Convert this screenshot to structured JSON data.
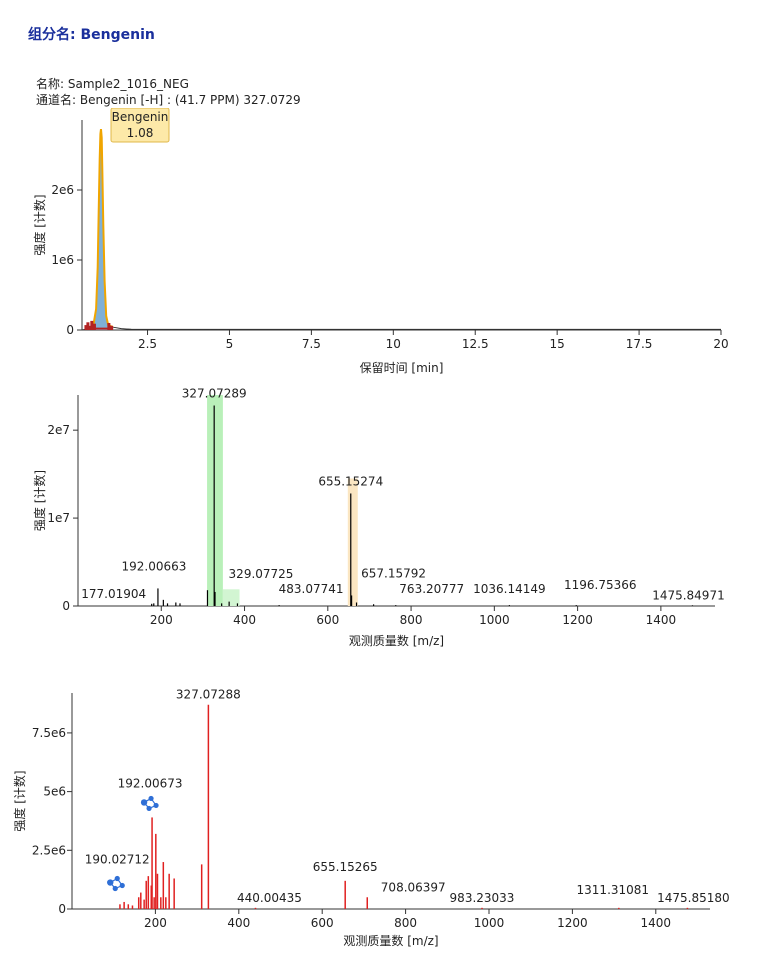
{
  "header": {
    "title": "组分名:  Bengenin",
    "sample": "名称: Sample2_1016_NEG",
    "channel": "通道名: Bengenin [-H] : (41.7 PPM) 327.0729"
  },
  "colors": {
    "title": "#1a2f9c",
    "chrom_fill": "#7fb0d6",
    "chrom_outline": "#f0a500",
    "chrom_noise": "#b22222",
    "ms1_line": "#000000",
    "ms1_green_band": "#b9f0b9",
    "ms1_orange_band": "#fbe6c2",
    "ms2_line": "#e02020",
    "structure_icon": "#2f6fd6",
    "callout_fill": "#fde9a8",
    "callout_border": "#e0b84a"
  },
  "chart_data": [
    {
      "type": "line",
      "xlabel": "保留时间 [min]",
      "ylabel": "强度 [计数]",
      "xlim": [
        0.5,
        20
      ],
      "ylim": [
        0,
        3000000
      ],
      "xticks": [
        2.5,
        5,
        7.5,
        10,
        12.5,
        15,
        17.5,
        20
      ],
      "xtick_labels": [
        "2.5",
        "5",
        "7.5",
        "10",
        "12.5",
        "15",
        "17.5",
        "20"
      ],
      "yticks": [
        0,
        1000000,
        2000000
      ],
      "ytick_labels": [
        "0",
        "1e6",
        "2e6"
      ],
      "x": [
        0.5,
        0.7,
        0.85,
        0.93,
        0.98,
        1.01,
        1.04,
        1.06,
        1.08,
        1.1,
        1.12,
        1.15,
        1.19,
        1.24,
        1.3,
        1.45,
        1.7,
        2.0,
        5,
        10,
        15,
        20
      ],
      "y": [
        0,
        20000,
        80000,
        300000,
        900000,
        1700000,
        2450000,
        2800000,
        2870000,
        2750000,
        2300000,
        1500000,
        700000,
        200000,
        70000,
        40000,
        20000,
        10000,
        8000,
        8000,
        8000,
        8000
      ],
      "peak_callout": {
        "name": "Bengenin",
        "rt": "1.08",
        "x": 1.08
      },
      "noise_x": [
        0.62,
        0.68,
        0.74,
        0.8,
        0.88,
        1.32,
        1.4
      ],
      "noise_y": [
        70000,
        110000,
        60000,
        130000,
        90000,
        100000,
        60000
      ]
    },
    {
      "type": "bar",
      "xlabel": "观测质量数 [m/z]",
      "ylabel": "强度 [计数]",
      "xlim": [
        0,
        1530
      ],
      "ylim": [
        0,
        24000000
      ],
      "xticks": [
        200,
        400,
        600,
        800,
        1000,
        1200,
        1400
      ],
      "xtick_labels": [
        "200",
        "400",
        "600",
        "800",
        "1000",
        "1200",
        "1400"
      ],
      "yticks": [
        0,
        10000000,
        20000000
      ],
      "ytick_labels": [
        "0",
        "1e7",
        "2e7"
      ],
      "bands": [
        {
          "x0": 310,
          "x1": 348,
          "color": "#b9f0b9",
          "ymax": 24000000
        },
        {
          "x0": 348,
          "x1": 388,
          "color": "#d2f5d2",
          "ymax": 1900000
        },
        {
          "x0": 648,
          "x1": 672,
          "color": "#fbe6c2",
          "ymax": 14500000
        }
      ],
      "peaks": [
        {
          "mz": 177.01904,
          "intensity": 250000
        },
        {
          "mz": 182.0,
          "intensity": 300000
        },
        {
          "mz": 192.00663,
          "intensity": 2000000
        },
        {
          "mz": 205.0,
          "intensity": 700000
        },
        {
          "mz": 215.0,
          "intensity": 300000
        },
        {
          "mz": 235.0,
          "intensity": 400000
        },
        {
          "mz": 245.0,
          "intensity": 300000
        },
        {
          "mz": 311.0,
          "intensity": 1800000
        },
        {
          "mz": 327.07289,
          "intensity": 22800000
        },
        {
          "mz": 329.07725,
          "intensity": 1600000
        },
        {
          "mz": 345.0,
          "intensity": 300000
        },
        {
          "mz": 363.0,
          "intensity": 500000
        },
        {
          "mz": 383.0,
          "intensity": 300000
        },
        {
          "mz": 483.07741,
          "intensity": 100000
        },
        {
          "mz": 655.15274,
          "intensity": 12800000
        },
        {
          "mz": 657.15792,
          "intensity": 1200000
        },
        {
          "mz": 669.0,
          "intensity": 400000
        },
        {
          "mz": 710.0,
          "intensity": 200000
        },
        {
          "mz": 763.20777,
          "intensity": 100000
        },
        {
          "mz": 1036.14149,
          "intensity": 100000
        },
        {
          "mz": 1196.75366,
          "intensity": 100000
        },
        {
          "mz": 1475.84971,
          "intensity": 80000
        }
      ],
      "labels": [
        {
          "text": "177.01904",
          "mz": 177.01904,
          "intensity": 250000
        },
        {
          "text": "192.00663",
          "mz": 192.00663,
          "intensity": 2000000
        },
        {
          "text": "327.07289",
          "mz": 327.07289,
          "intensity": 22800000
        },
        {
          "text": "329.07725",
          "mz": 329.07725,
          "intensity": 1600000
        },
        {
          "text": "483.07741",
          "mz": 483.07741,
          "intensity": 100000
        },
        {
          "text": "655.15274",
          "mz": 655.15274,
          "intensity": 12800000
        },
        {
          "text": "657.15792",
          "mz": 657.15792,
          "intensity": 1200000
        },
        {
          "text": "763.20777",
          "mz": 763.20777,
          "intensity": 100000
        },
        {
          "text": "1036.14149",
          "mz": 1036.14149,
          "intensity": 100000
        },
        {
          "text": "1196.75366",
          "mz": 1196.75366,
          "intensity": 100000
        },
        {
          "text": "1475.84971",
          "mz": 1475.84971,
          "intensity": 80000
        }
      ]
    },
    {
      "type": "bar",
      "xlabel": "观测质量数 [m/z]",
      "ylabel": "强度 [计数]",
      "xlim": [
        0,
        1530
      ],
      "ylim": [
        0,
        9200000
      ],
      "xticks": [
        200,
        400,
        600,
        800,
        1000,
        1200,
        1400
      ],
      "xtick_labels": [
        "200",
        "400",
        "600",
        "800",
        "1000",
        "1200",
        "1400"
      ],
      "yticks": [
        0,
        2500000,
        5000000,
        7500000
      ],
      "ytick_labels": [
        "0",
        "2.5e6",
        "5e6",
        "7.5e6"
      ],
      "peaks": [
        {
          "mz": 115,
          "intensity": 200000
        },
        {
          "mz": 125,
          "intensity": 300000
        },
        {
          "mz": 135,
          "intensity": 200000
        },
        {
          "mz": 145,
          "intensity": 150000
        },
        {
          "mz": 160,
          "intensity": 500000
        },
        {
          "mz": 165,
          "intensity": 700000
        },
        {
          "mz": 173,
          "intensity": 400000
        },
        {
          "mz": 178,
          "intensity": 1200000
        },
        {
          "mz": 183,
          "intensity": 1400000
        },
        {
          "mz": 190.02712,
          "intensity": 1000000
        },
        {
          "mz": 192.00673,
          "intensity": 3900000
        },
        {
          "mz": 197,
          "intensity": 500000
        },
        {
          "mz": 201,
          "intensity": 3200000
        },
        {
          "mz": 205,
          "intensity": 1500000
        },
        {
          "mz": 213,
          "intensity": 500000
        },
        {
          "mz": 219,
          "intensity": 2000000
        },
        {
          "mz": 225,
          "intensity": 500000
        },
        {
          "mz": 233,
          "intensity": 1500000
        },
        {
          "mz": 245,
          "intensity": 1300000
        },
        {
          "mz": 311,
          "intensity": 1900000
        },
        {
          "mz": 327.07288,
          "intensity": 8700000
        },
        {
          "mz": 440.00435,
          "intensity": 50000
        },
        {
          "mz": 655.15265,
          "intensity": 1200000
        },
        {
          "mz": 708.06397,
          "intensity": 500000
        },
        {
          "mz": 983.23033,
          "intensity": 50000
        },
        {
          "mz": 1311.31081,
          "intensity": 50000
        },
        {
          "mz": 1475.8518,
          "intensity": 50000
        }
      ],
      "labels": [
        {
          "text": "327.07288",
          "mz": 327.07288,
          "intensity": 8700000
        },
        {
          "text": "192.00673",
          "mz": 192.00673,
          "intensity": 3900000
        },
        {
          "text": "190.02712",
          "mz": 190.02712,
          "intensity": 1000000
        },
        {
          "text": "440.00435",
          "mz": 440.00435,
          "intensity": 50000
        },
        {
          "text": "655.15265",
          "mz": 655.15265,
          "intensity": 1200000
        },
        {
          "text": "708.06397",
          "mz": 708.06397,
          "intensity": 500000
        },
        {
          "text": "983.23033",
          "mz": 983.23033,
          "intensity": 50000
        },
        {
          "text": "1311.31081",
          "mz": 1311.31081,
          "intensity": 50000
        },
        {
          "text": "1475.85180",
          "mz": 1475.8518,
          "intensity": 50000
        }
      ],
      "structure_icons": [
        {
          "name": "structure-icon-192",
          "mz": 192.00673,
          "intensity": 3900000
        },
        {
          "name": "structure-icon-190",
          "mz": 190.02712,
          "intensity": 1000000
        }
      ]
    }
  ]
}
